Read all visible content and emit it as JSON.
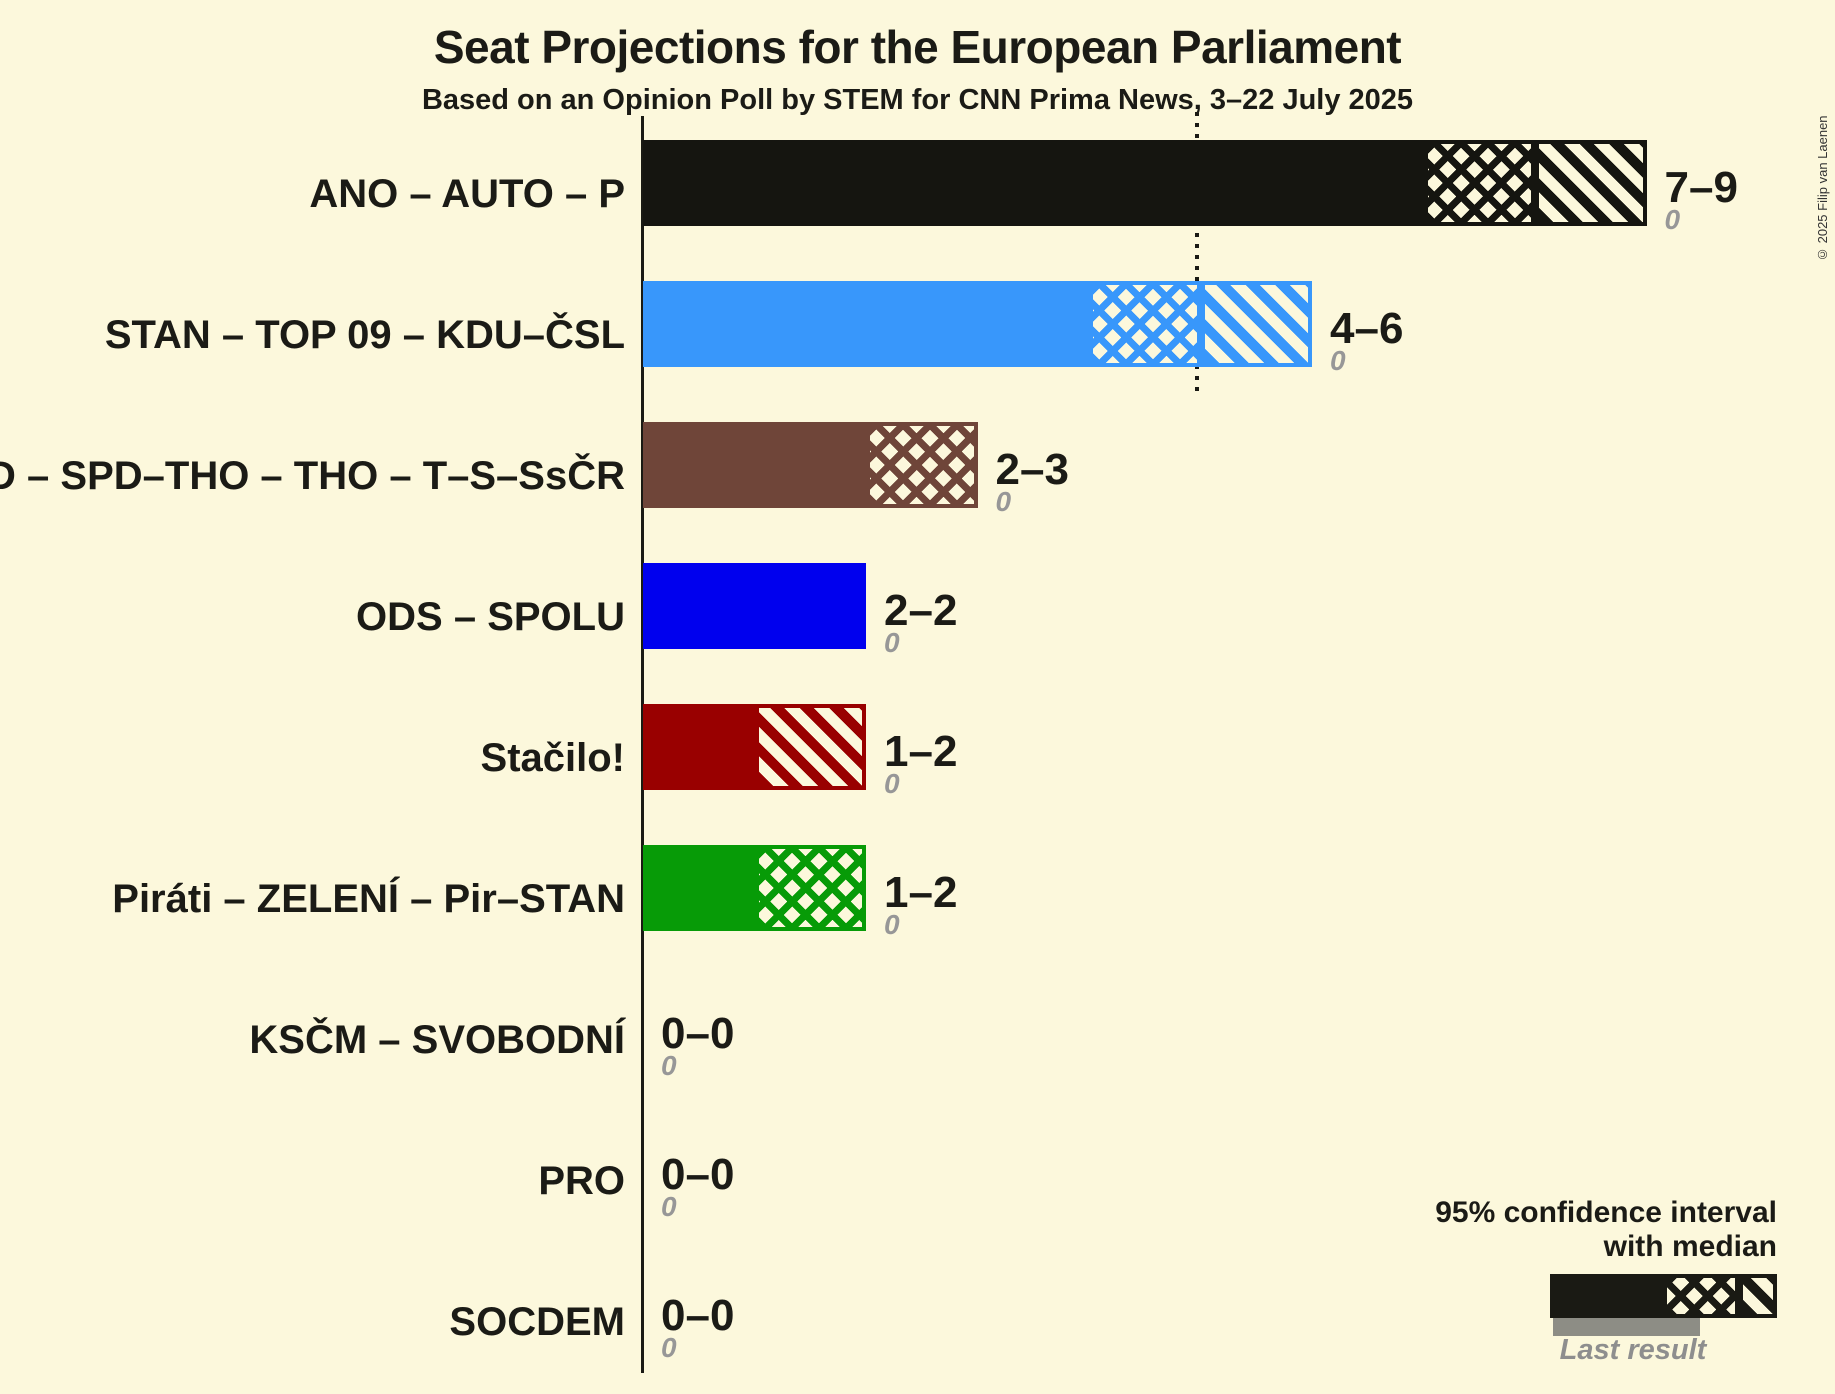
{
  "title": "Seat Projections for the European Parliament",
  "subtitle": "Based on an Opinion Poll by STEM for CNN Prima News, 3–22 July 2025",
  "copyright": "© 2025 Filip van Laenen",
  "legend": {
    "ci_line1": "95% confidence interval",
    "ci_line2": "with median",
    "last_result": "Last result"
  },
  "chart_data": {
    "type": "bar",
    "orientation": "horizontal",
    "unit": "seats",
    "ci_level": "95%",
    "dotted_guide_at_seats": 5,
    "parties": [
      {
        "label": "ANO – AUTO – P",
        "ci_low": 7,
        "median": 8,
        "ci_high": 9,
        "range_label": "7–9",
        "last_result": 0,
        "last_result_label": "0",
        "color": "#151510"
      },
      {
        "label": "STAN – TOP 09 – KDU–ČSL",
        "ci_low": 4,
        "median": 5,
        "ci_high": 6,
        "range_label": "4–6",
        "last_result": 0,
        "last_result_label": "0",
        "color": "#3897FB"
      },
      {
        "label": "SPD – SPD–THO – THO – T–S–SsČR",
        "ci_low": 2,
        "median": 3,
        "ci_high": 3,
        "range_label": "2–3",
        "last_result": 0,
        "last_result_label": "0",
        "color": "#6F4539"
      },
      {
        "label": "ODS – SPOLU",
        "ci_low": 2,
        "median": 2,
        "ci_high": 2,
        "range_label": "2–2",
        "last_result": 0,
        "last_result_label": "0",
        "color": "#0000EE"
      },
      {
        "label": "Stačilo!",
        "ci_low": 1,
        "median": 1,
        "ci_high": 2,
        "range_label": "1–2",
        "last_result": 0,
        "last_result_label": "0",
        "color": "#990000"
      },
      {
        "label": "Piráti – ZELENÍ – Pir–STAN",
        "ci_low": 1,
        "median": 2,
        "ci_high": 2,
        "range_label": "1–2",
        "last_result": 0,
        "last_result_label": "0",
        "color": "#079B07"
      },
      {
        "label": "KSČM – SVOBODNÍ",
        "ci_low": 0,
        "median": 0,
        "ci_high": 0,
        "range_label": "0–0",
        "last_result": 0,
        "last_result_label": "0",
        "color": null
      },
      {
        "label": "PRO",
        "ci_low": 0,
        "median": 0,
        "ci_high": 0,
        "range_label": "0–0",
        "last_result": 0,
        "last_result_label": "0",
        "color": null
      },
      {
        "label": "SOCDEM",
        "ci_low": 0,
        "median": 0,
        "ci_high": 0,
        "range_label": "0–0",
        "last_result": 0,
        "last_result_label": "0",
        "color": null
      }
    ]
  }
}
